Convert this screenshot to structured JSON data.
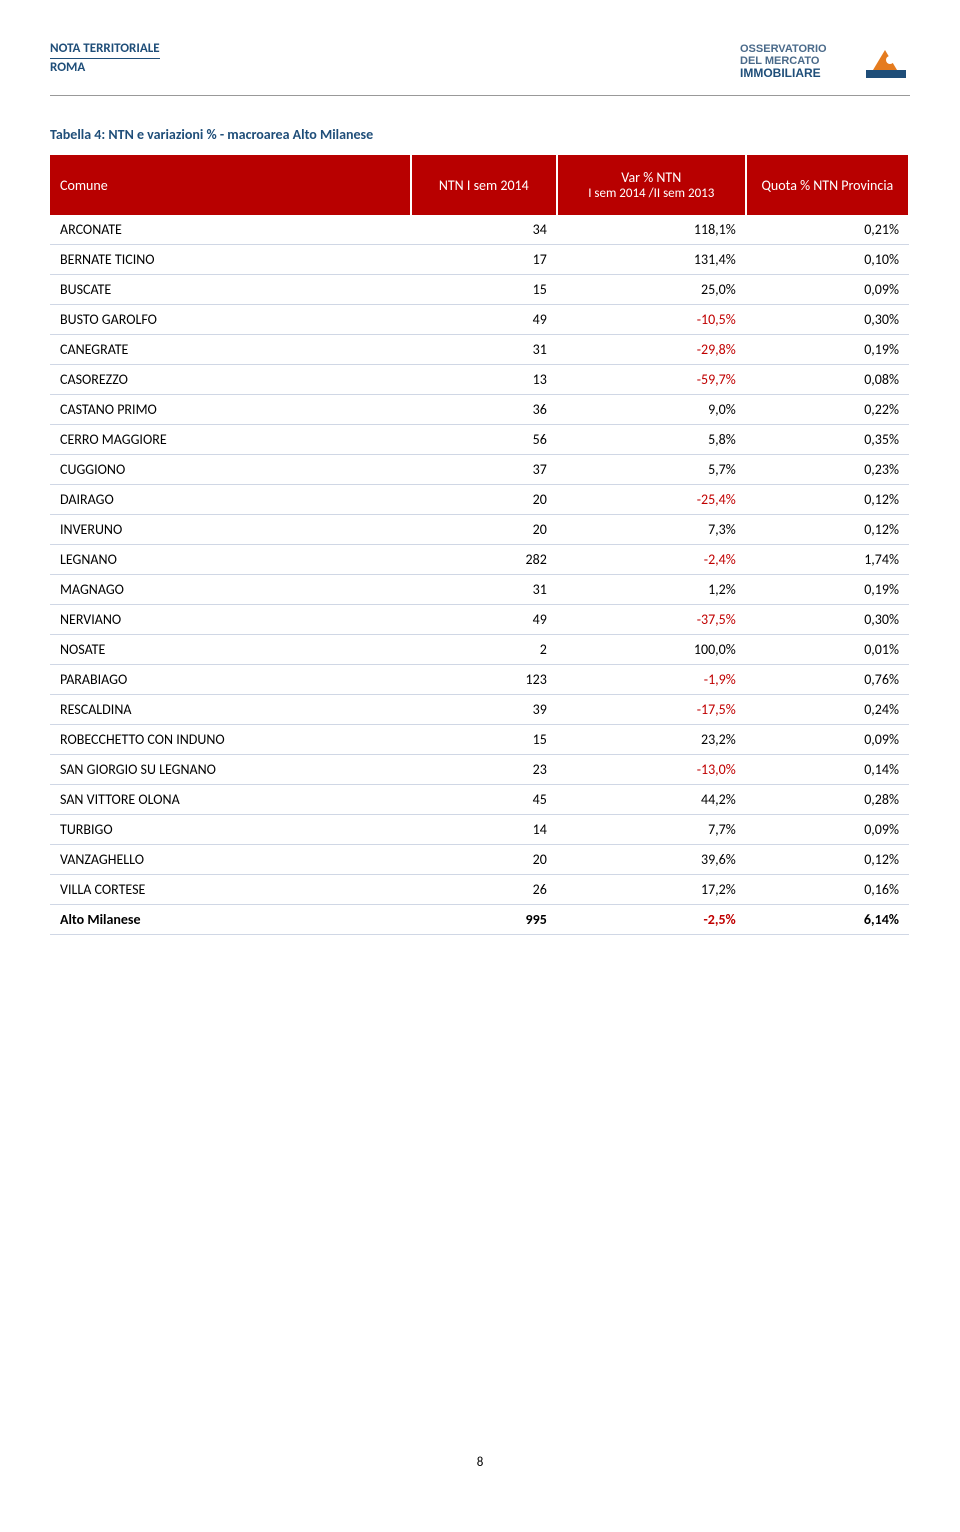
{
  "header": {
    "line1": "NOTA TERRITORIALE",
    "line2": "ROMA"
  },
  "logo": {
    "line1": "OSSERVATORIO",
    "line2": "DEL MERCATO",
    "line3": "IMMOBILIARE"
  },
  "title": "Tabella 4: NTN e variazioni % - macroarea Alto Milanese",
  "columns": {
    "c0": "Comune",
    "c1": "NTN I sem 2014",
    "c2a": "Var % NTN",
    "c2b": "I sem 2014 /II sem 2013",
    "c3": "Quota % NTN Provincia"
  },
  "rows": [
    {
      "name": "ARCONATE",
      "ntn": "34",
      "var": "118,1%",
      "neg": false,
      "quota": "0,21%"
    },
    {
      "name": "BERNATE TICINO",
      "ntn": "17",
      "var": "131,4%",
      "neg": false,
      "quota": "0,10%"
    },
    {
      "name": "BUSCATE",
      "ntn": "15",
      "var": "25,0%",
      "neg": false,
      "quota": "0,09%"
    },
    {
      "name": "BUSTO GAROLFO",
      "ntn": "49",
      "var": "-10,5%",
      "neg": true,
      "quota": "0,30%"
    },
    {
      "name": "CANEGRATE",
      "ntn": "31",
      "var": "-29,8%",
      "neg": true,
      "quota": "0,19%"
    },
    {
      "name": "CASOREZZO",
      "ntn": "13",
      "var": "-59,7%",
      "neg": true,
      "quota": "0,08%"
    },
    {
      "name": "CASTANO PRIMO",
      "ntn": "36",
      "var": "9,0%",
      "neg": false,
      "quota": "0,22%"
    },
    {
      "name": "CERRO MAGGIORE",
      "ntn": "56",
      "var": "5,8%",
      "neg": false,
      "quota": "0,35%"
    },
    {
      "name": "CUGGIONO",
      "ntn": "37",
      "var": "5,7%",
      "neg": false,
      "quota": "0,23%"
    },
    {
      "name": "DAIRAGO",
      "ntn": "20",
      "var": "-25,4%",
      "neg": true,
      "quota": "0,12%"
    },
    {
      "name": "INVERUNO",
      "ntn": "20",
      "var": "7,3%",
      "neg": false,
      "quota": "0,12%"
    },
    {
      "name": "LEGNANO",
      "ntn": "282",
      "var": "-2,4%",
      "neg": true,
      "quota": "1,74%"
    },
    {
      "name": "MAGNAGO",
      "ntn": "31",
      "var": "1,2%",
      "neg": false,
      "quota": "0,19%"
    },
    {
      "name": "NERVIANO",
      "ntn": "49",
      "var": "-37,5%",
      "neg": true,
      "quota": "0,30%"
    },
    {
      "name": "NOSATE",
      "ntn": "2",
      "var": "100,0%",
      "neg": false,
      "quota": "0,01%"
    },
    {
      "name": "PARABIAGO",
      "ntn": "123",
      "var": "-1,9%",
      "neg": true,
      "quota": "0,76%"
    },
    {
      "name": "RESCALDINA",
      "ntn": "39",
      "var": "-17,5%",
      "neg": true,
      "quota": "0,24%"
    },
    {
      "name": "ROBECCHETTO CON INDUNO",
      "ntn": "15",
      "var": "23,2%",
      "neg": false,
      "quota": "0,09%"
    },
    {
      "name": "SAN GIORGIO SU LEGNANO",
      "ntn": "23",
      "var": "-13,0%",
      "neg": true,
      "quota": "0,14%"
    },
    {
      "name": "SAN VITTORE OLONA",
      "ntn": "45",
      "var": "44,2%",
      "neg": false,
      "quota": "0,28%"
    },
    {
      "name": "TURBIGO",
      "ntn": "14",
      "var": "7,7%",
      "neg": false,
      "quota": "0,09%"
    },
    {
      "name": "VANZAGHELLO",
      "ntn": "20",
      "var": "39,6%",
      "neg": false,
      "quota": "0,12%"
    },
    {
      "name": "VILLA CORTESE",
      "ntn": "26",
      "var": "17,2%",
      "neg": false,
      "quota": "0,16%"
    }
  ],
  "total": {
    "name": "Alto Milanese",
    "ntn": "995",
    "var": "-2,5%",
    "neg": true,
    "quota": "6,14%"
  },
  "page_number": "8",
  "colors": {
    "header_blue": "#1f4e79",
    "table_header_bg": "#b80000",
    "negative": "#c00000",
    "row_border": "#d0d7e5"
  }
}
